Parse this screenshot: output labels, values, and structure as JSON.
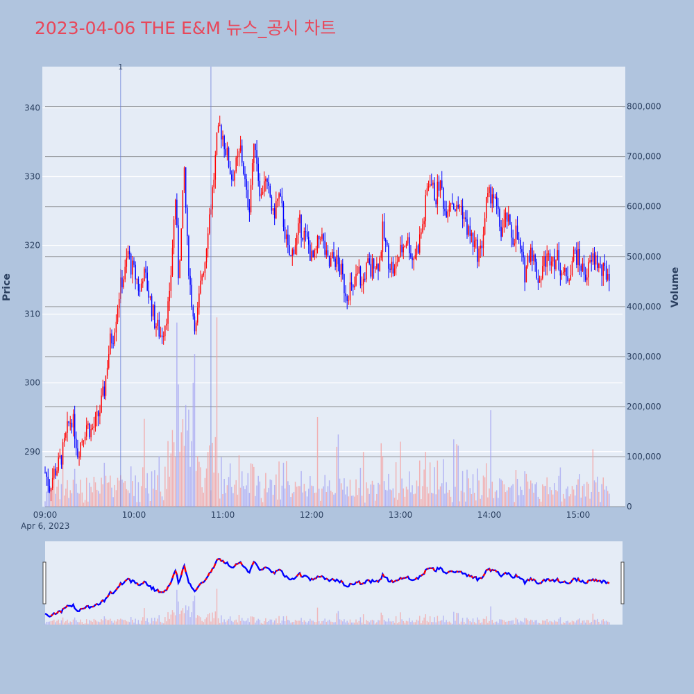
{
  "title": "2023-04-06 THE E&M 뉴스_공시 차트",
  "colors": {
    "background": "#b0c4de",
    "plot_bg": "#e5ecf6",
    "up": "#ff0000",
    "down": "#0000ff",
    "title": "#e8475a",
    "axis_text": "#2a3f5f"
  },
  "chart_data": {
    "type": "candlestick",
    "yaxis_left": {
      "title": "Price",
      "range": [
        282,
        346
      ],
      "ticks": [
        290,
        300,
        310,
        320,
        330,
        340
      ]
    },
    "yaxis_right": {
      "title": "Volume",
      "range": [
        0,
        880000
      ],
      "ticks": [
        0,
        100000,
        200000,
        300000,
        400000,
        500000,
        600000,
        700000,
        800000
      ],
      "tick_labels": [
        "0",
        "100,000",
        "200,000",
        "300,000",
        "400,000",
        "500,000",
        "600,000",
        "700,000",
        "800,000"
      ]
    },
    "xaxis": {
      "range_minutes": [
        0,
        390
      ],
      "ticks": [
        0,
        60,
        120,
        180,
        240,
        300,
        360
      ],
      "tick_labels": [
        "09:00",
        "10:00",
        "11:00",
        "12:00",
        "13:00",
        "14:00",
        "15:00"
      ],
      "date_label": "Apr 6, 2023"
    },
    "annotations": [
      {
        "minute": 51,
        "text": "1"
      }
    ],
    "reference_lines_minutes": [
      51,
      112
    ],
    "close_path": [
      [
        0,
        287
      ],
      [
        3,
        285
      ],
      [
        6,
        287
      ],
      [
        9,
        288
      ],
      [
        12,
        290
      ],
      [
        14,
        292
      ],
      [
        16,
        294
      ],
      [
        18,
        295
      ],
      [
        20,
        293
      ],
      [
        22,
        290
      ],
      [
        25,
        292
      ],
      [
        28,
        294
      ],
      [
        31,
        293
      ],
      [
        34,
        294
      ],
      [
        37,
        296
      ],
      [
        40,
        299
      ],
      [
        42,
        303
      ],
      [
        44,
        306
      ],
      [
        46,
        307
      ],
      [
        48,
        310
      ],
      [
        50,
        313
      ],
      [
        52,
        315
      ],
      [
        54,
        316
      ],
      [
        56,
        319
      ],
      [
        58,
        317
      ],
      [
        60,
        316
      ],
      [
        62,
        315
      ],
      [
        64,
        313
      ],
      [
        66,
        316
      ],
      [
        68,
        315
      ],
      [
        70,
        313
      ],
      [
        72,
        311
      ],
      [
        74,
        309
      ],
      [
        76,
        308
      ],
      [
        78,
        307
      ],
      [
        80,
        308
      ],
      [
        82,
        310
      ],
      [
        84,
        312
      ],
      [
        86,
        320
      ],
      [
        88,
        327
      ],
      [
        90,
        316
      ],
      [
        92,
        322
      ],
      [
        94,
        331
      ],
      [
        96,
        320
      ],
      [
        98,
        314
      ],
      [
        100,
        310
      ],
      [
        102,
        308
      ],
      [
        104,
        312
      ],
      [
        106,
        316
      ],
      [
        108,
        318
      ],
      [
        110,
        323
      ],
      [
        112,
        326
      ],
      [
        114,
        330
      ],
      [
        116,
        335
      ],
      [
        118,
        337
      ],
      [
        120,
        336
      ],
      [
        122,
        334
      ],
      [
        124,
        332
      ],
      [
        126,
        330
      ],
      [
        128,
        331
      ],
      [
        130,
        332
      ],
      [
        132,
        334
      ],
      [
        134,
        331
      ],
      [
        136,
        327
      ],
      [
        138,
        326
      ],
      [
        140,
        332
      ],
      [
        142,
        335
      ],
      [
        144,
        330
      ],
      [
        146,
        327
      ],
      [
        148,
        330
      ],
      [
        150,
        328
      ],
      [
        152,
        327
      ],
      [
        154,
        324
      ],
      [
        156,
        326
      ],
      [
        158,
        327
      ],
      [
        160,
        325
      ],
      [
        162,
        322
      ],
      [
        164,
        319
      ],
      [
        166,
        318
      ],
      [
        168,
        320
      ],
      [
        170,
        321
      ],
      [
        172,
        323
      ],
      [
        174,
        322
      ],
      [
        176,
        321
      ],
      [
        178,
        320
      ],
      [
        180,
        318
      ],
      [
        182,
        318
      ],
      [
        184,
        320
      ],
      [
        186,
        322
      ],
      [
        188,
        320
      ],
      [
        190,
        318
      ],
      [
        192,
        317
      ],
      [
        194,
        318
      ],
      [
        196,
        318
      ],
      [
        198,
        317
      ],
      [
        200,
        316
      ],
      [
        202,
        314
      ],
      [
        204,
        313
      ],
      [
        206,
        314
      ],
      [
        208,
        313
      ],
      [
        210,
        315
      ],
      [
        212,
        316
      ],
      [
        214,
        314
      ],
      [
        216,
        316
      ],
      [
        218,
        317
      ],
      [
        220,
        316
      ],
      [
        222,
        318
      ],
      [
        224,
        317
      ],
      [
        226,
        318
      ],
      [
        228,
        322
      ],
      [
        230,
        320
      ],
      [
        232,
        318
      ],
      [
        234,
        317
      ],
      [
        236,
        316
      ],
      [
        238,
        318
      ],
      [
        240,
        319
      ],
      [
        242,
        320
      ],
      [
        244,
        321
      ],
      [
        246,
        320
      ],
      [
        248,
        318
      ],
      [
        250,
        319
      ],
      [
        252,
        320
      ],
      [
        254,
        322
      ],
      [
        256,
        324
      ],
      [
        258,
        328
      ],
      [
        260,
        330
      ],
      [
        262,
        328
      ],
      [
        264,
        327
      ],
      [
        266,
        329
      ],
      [
        268,
        328
      ],
      [
        270,
        325
      ],
      [
        272,
        326
      ],
      [
        274,
        327
      ],
      [
        276,
        326
      ],
      [
        278,
        325
      ],
      [
        280,
        326
      ],
      [
        282,
        325
      ],
      [
        284,
        323
      ],
      [
        286,
        322
      ],
      [
        288,
        321
      ],
      [
        290,
        320
      ],
      [
        292,
        319
      ],
      [
        294,
        319
      ],
      [
        296,
        322
      ],
      [
        298,
        326
      ],
      [
        300,
        327
      ],
      [
        302,
        328
      ],
      [
        304,
        326
      ],
      [
        306,
        324
      ],
      [
        308,
        322
      ],
      [
        310,
        323
      ],
      [
        312,
        324
      ],
      [
        314,
        322
      ],
      [
        316,
        321
      ],
      [
        318,
        322
      ],
      [
        320,
        320
      ],
      [
        322,
        318
      ],
      [
        324,
        316
      ],
      [
        326,
        318
      ],
      [
        328,
        320
      ],
      [
        330,
        318
      ],
      [
        332,
        316
      ],
      [
        334,
        315
      ],
      [
        336,
        317
      ],
      [
        338,
        318
      ],
      [
        340,
        318
      ],
      [
        342,
        319
      ],
      [
        344,
        318
      ],
      [
        346,
        318
      ],
      [
        348,
        317
      ],
      [
        350,
        316
      ],
      [
        352,
        315
      ],
      [
        354,
        316
      ],
      [
        356,
        318
      ],
      [
        358,
        319
      ],
      [
        360,
        318
      ],
      [
        362,
        317
      ],
      [
        364,
        316
      ],
      [
        366,
        316
      ],
      [
        368,
        317
      ],
      [
        370,
        318
      ],
      [
        372,
        318
      ],
      [
        374,
        317
      ],
      [
        376,
        316
      ],
      [
        378,
        316
      ],
      [
        380,
        316
      ],
      [
        390,
        318
      ]
    ],
    "volume_notes": "one volume bar per minute, max approx 280,000 near 10:50; color follows candle direction"
  }
}
